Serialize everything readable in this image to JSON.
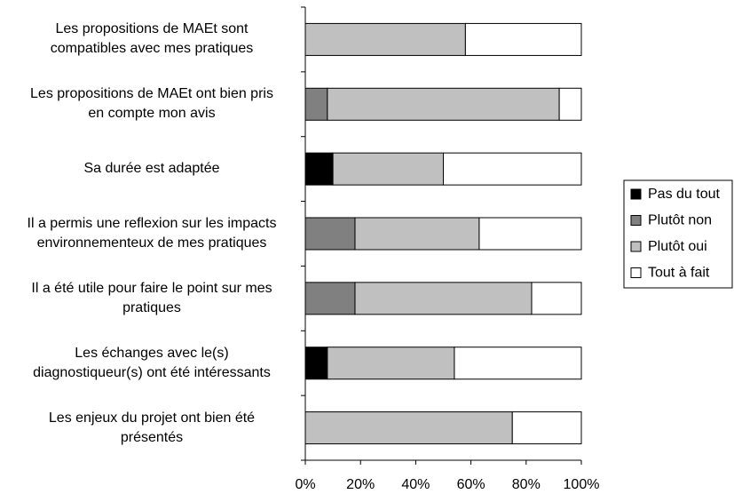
{
  "chart_data": {
    "type": "stacked-bar-horizontal",
    "categories": [
      "Les propositions de MAEt sont\ncompatibles avec mes pratiques",
      "Les propositions de MAEt ont bien pris\nen compte mon avis",
      "Sa durée est adaptée",
      "Il a permis une reflexion sur les impacts\nenvironnementeux de mes pratiques",
      "Il a été utile pour faire le point sur mes\npratiques",
      "Les échanges avec le(s)\ndiagnostiqueur(s) ont été intéressants",
      "Les enjeux du projet ont bien été\nprésentés"
    ],
    "series": [
      {
        "name": "Pas du tout",
        "color": "#000000",
        "values": [
          0,
          0,
          10,
          0,
          0,
          8,
          0
        ]
      },
      {
        "name": "Plutôt non",
        "color": "#808080",
        "values": [
          0,
          8,
          0,
          18,
          18,
          0,
          0
        ]
      },
      {
        "name": "Plutôt oui",
        "color": "#c0c0c0",
        "values": [
          58,
          84,
          40,
          45,
          64,
          46,
          75
        ]
      },
      {
        "name": "Tout à fait",
        "color": "#ffffff",
        "values": [
          42,
          8,
          50,
          37,
          18,
          46,
          25
        ]
      }
    ],
    "xlim": [
      0,
      100
    ],
    "xticks": [
      {
        "value": 0,
        "label": "0%"
      },
      {
        "value": 20,
        "label": "20%"
      },
      {
        "value": 40,
        "label": "40%"
      },
      {
        "value": 60,
        "label": "60%"
      },
      {
        "value": 80,
        "label": "80%"
      },
      {
        "value": 100,
        "label": "100%"
      }
    ],
    "legend": "right",
    "grid": false
  }
}
